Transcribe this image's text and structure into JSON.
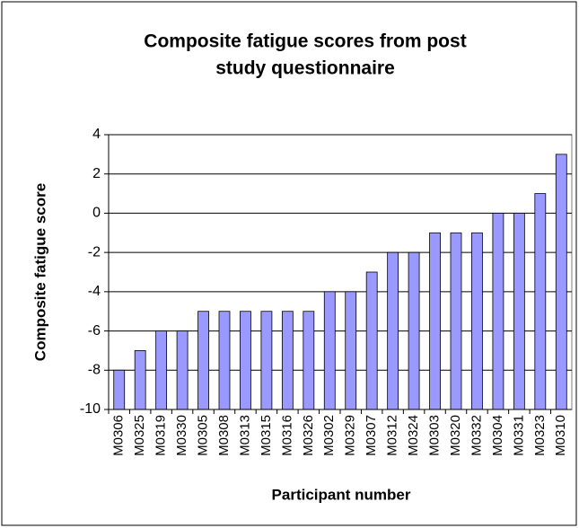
{
  "chart_data": {
    "type": "bar",
    "title": [
      "Composite fatigue scores from post",
      "study questionnaire"
    ],
    "xlabel": "Participant number",
    "ylabel": "Composite fatigue score",
    "categories": [
      "M0306",
      "M0325",
      "M0319",
      "M0330",
      "M0305",
      "M0308",
      "M0313",
      "M0315",
      "M0316",
      "M0326",
      "M0302",
      "M0329",
      "M0307",
      "M0312",
      "M0324",
      "M0303",
      "M0320",
      "M0332",
      "M0304",
      "M0331",
      "M0323",
      "M0310"
    ],
    "values": [
      -8,
      -7,
      -6,
      -6,
      -5,
      -5,
      -5,
      -5,
      -5,
      -5,
      -4,
      -4,
      -3,
      -2,
      -2,
      -1,
      -1,
      -1,
      0,
      0,
      1,
      3
    ],
    "color": "#9999ff",
    "ylim": [
      -10,
      4
    ],
    "yticks": [
      -10,
      -8,
      -6,
      -4,
      -2,
      0,
      2,
      4
    ],
    "grid": true
  }
}
